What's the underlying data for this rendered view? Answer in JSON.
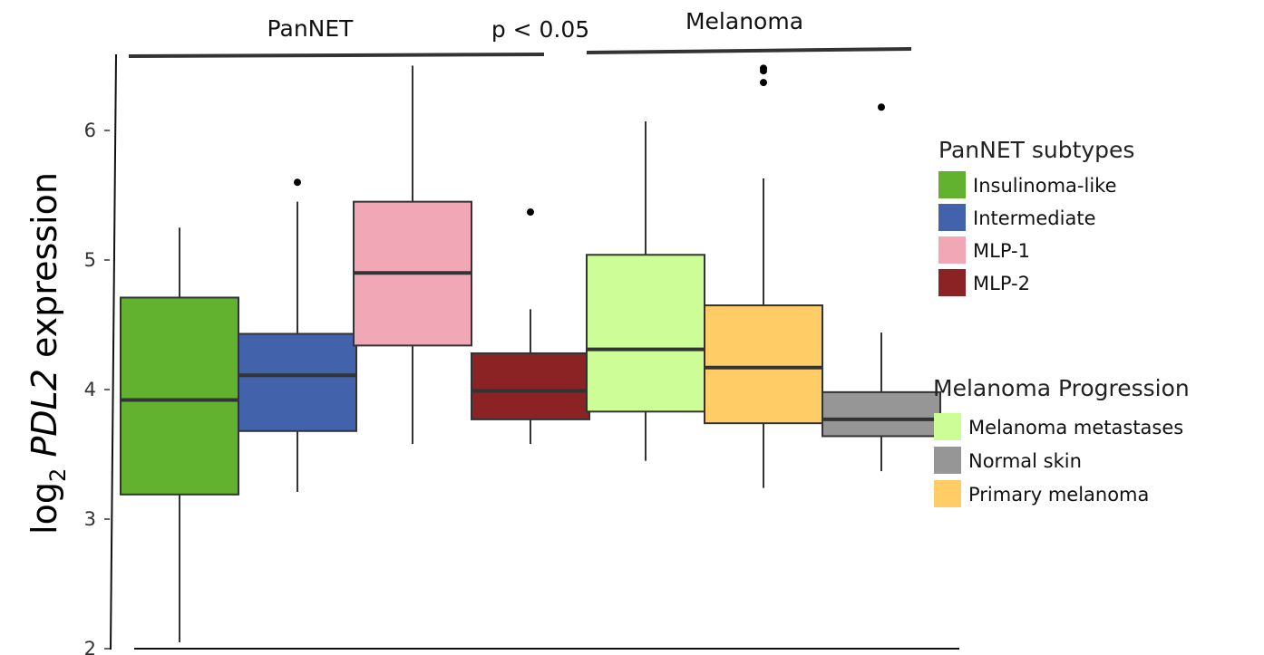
{
  "chart_data": {
    "type": "box",
    "ylabel": {
      "prefix": "log",
      "subscript": "2",
      "gene": "PDL2",
      "suffix": " expression"
    },
    "ylim": [
      2,
      6.5
    ],
    "yticks": [
      "2",
      "3",
      "4",
      "5",
      "6"
    ],
    "groups": [
      {
        "label": "PanNET",
        "series": [
          0,
          1,
          2,
          3
        ]
      },
      {
        "label": "Melanoma",
        "series": [
          4,
          5,
          6
        ]
      }
    ],
    "comparison": "p < 0.05",
    "series": [
      {
        "name": "Insulinoma-like",
        "color": "#62b22f",
        "min": 2.05,
        "q1": 3.19,
        "median": 3.92,
        "q3": 4.71,
        "max": 5.25,
        "outliers": []
      },
      {
        "name": "Intermediate",
        "color": "#4262ab",
        "min": 3.21,
        "q1": 3.68,
        "median": 4.11,
        "q3": 4.43,
        "max": 5.45,
        "outliers": [
          5.6
        ]
      },
      {
        "name": "MLP-1",
        "color": "#f1a7b6",
        "min": 3.58,
        "q1": 4.34,
        "median": 4.9,
        "q3": 5.45,
        "max": 6.5,
        "outliers": []
      },
      {
        "name": "MLP-2",
        "color": "#8b2224",
        "min": 3.58,
        "q1": 3.77,
        "median": 3.99,
        "q3": 4.28,
        "max": 4.62,
        "outliers": [
          5.37
        ]
      },
      {
        "name": "Melanoma metastases",
        "color": "#cdfd97",
        "min": 3.45,
        "q1": 3.83,
        "median": 4.31,
        "q3": 5.04,
        "max": 6.07,
        "outliers": []
      },
      {
        "name": "Primary melanoma",
        "color": "#ffcc66",
        "min": 3.24,
        "q1": 3.74,
        "median": 4.17,
        "q3": 4.65,
        "max": 5.63,
        "outliers": [
          6.37,
          6.46,
          6.48
        ]
      },
      {
        "name": "Normal skin",
        "color": "#969696",
        "min": 3.37,
        "q1": 3.64,
        "median": 3.77,
        "q3": 3.98,
        "max": 4.44,
        "outliers": [
          6.18
        ]
      }
    ],
    "legends": [
      {
        "title": "PanNET subtypes",
        "items": [
          {
            "label": "Insulinoma-like",
            "color": "#62b22f"
          },
          {
            "label": "Intermediate",
            "color": "#4262ab"
          },
          {
            "label": "MLP-1",
            "color": "#f1a7b6"
          },
          {
            "label": "MLP-2",
            "color": "#8b2224"
          }
        ]
      },
      {
        "title": "Melanoma Progression",
        "items": [
          {
            "label": "Melanoma metastases",
            "color": "#cdfd97"
          },
          {
            "label": "Normal skin",
            "color": "#969696"
          },
          {
            "label": "Primary melanoma",
            "color": "#ffcc66"
          }
        ]
      }
    ]
  }
}
